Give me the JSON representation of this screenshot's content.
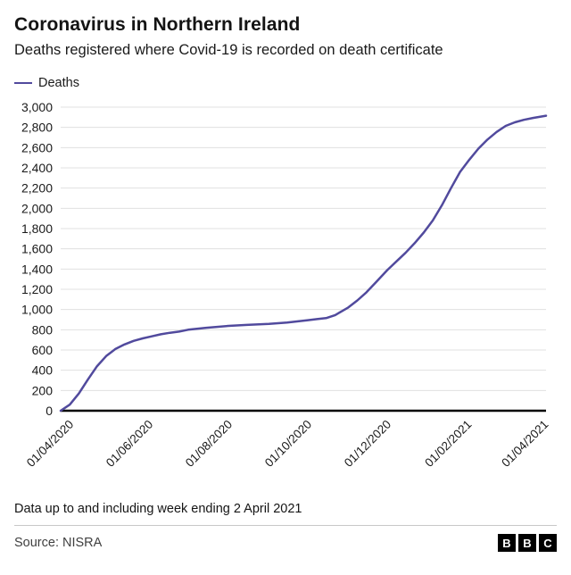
{
  "header": {
    "title": "Coronavirus in Northern Ireland",
    "subtitle": "Deaths registered where Covid-19 is recorded on death certificate"
  },
  "legend": {
    "label": "Deaths"
  },
  "chart_data": {
    "type": "line",
    "title": "Coronavirus in Northern Ireland",
    "subtitle": "Deaths registered where Covid-19 is recorded on death certificate",
    "xlabel": "",
    "ylabel": "",
    "ylim": [
      0,
      3000
    ],
    "y_tick_step": 200,
    "grid": true,
    "grid_color": "#e0e0e0",
    "axis_color": "#000000",
    "legend_position": "top-left",
    "x_ticks": [
      "01/04/2020",
      "01/06/2020",
      "01/08/2020",
      "01/10/2020",
      "01/12/2020",
      "01/02/2021",
      "01/04/2021"
    ],
    "series": [
      {
        "name": "Deaths",
        "color": "#514a9d",
        "points": [
          {
            "date": "25/03/2020",
            "value": 0
          },
          {
            "date": "01/04/2020",
            "value": 60
          },
          {
            "date": "08/04/2020",
            "value": 170
          },
          {
            "date": "15/04/2020",
            "value": 310
          },
          {
            "date": "22/04/2020",
            "value": 440
          },
          {
            "date": "29/04/2020",
            "value": 540
          },
          {
            "date": "06/05/2020",
            "value": 610
          },
          {
            "date": "13/05/2020",
            "value": 655
          },
          {
            "date": "20/05/2020",
            "value": 690
          },
          {
            "date": "27/05/2020",
            "value": 715
          },
          {
            "date": "03/06/2020",
            "value": 735
          },
          {
            "date": "10/06/2020",
            "value": 755
          },
          {
            "date": "17/06/2020",
            "value": 770
          },
          {
            "date": "24/06/2020",
            "value": 782
          },
          {
            "date": "01/07/2020",
            "value": 800
          },
          {
            "date": "15/07/2020",
            "value": 820
          },
          {
            "date": "01/08/2020",
            "value": 838
          },
          {
            "date": "15/08/2020",
            "value": 848
          },
          {
            "date": "01/09/2020",
            "value": 858
          },
          {
            "date": "15/09/2020",
            "value": 872
          },
          {
            "date": "01/10/2020",
            "value": 895
          },
          {
            "date": "08/10/2020",
            "value": 905
          },
          {
            "date": "15/10/2020",
            "value": 915
          },
          {
            "date": "22/10/2020",
            "value": 945
          },
          {
            "date": "01/11/2020",
            "value": 1020
          },
          {
            "date": "08/11/2020",
            "value": 1090
          },
          {
            "date": "15/11/2020",
            "value": 1170
          },
          {
            "date": "22/11/2020",
            "value": 1265
          },
          {
            "date": "01/12/2020",
            "value": 1390
          },
          {
            "date": "08/12/2020",
            "value": 1475
          },
          {
            "date": "15/12/2020",
            "value": 1560
          },
          {
            "date": "22/12/2020",
            "value": 1655
          },
          {
            "date": "29/12/2020",
            "value": 1760
          },
          {
            "date": "05/01/2021",
            "value": 1880
          },
          {
            "date": "12/01/2021",
            "value": 2030
          },
          {
            "date": "19/01/2021",
            "value": 2200
          },
          {
            "date": "26/01/2021",
            "value": 2360
          },
          {
            "date": "02/02/2021",
            "value": 2480
          },
          {
            "date": "09/02/2021",
            "value": 2590
          },
          {
            "date": "16/02/2021",
            "value": 2680
          },
          {
            "date": "23/02/2021",
            "value": 2755
          },
          {
            "date": "02/03/2021",
            "value": 2815
          },
          {
            "date": "09/03/2021",
            "value": 2850
          },
          {
            "date": "16/03/2021",
            "value": 2875
          },
          {
            "date": "23/03/2021",
            "value": 2893
          },
          {
            "date": "02/04/2021",
            "value": 2915
          }
        ]
      }
    ]
  },
  "footer": {
    "note": "Data up to and including week ending 2 April 2021",
    "source": "Source: NISRA",
    "logo_letters": [
      "B",
      "B",
      "C"
    ]
  },
  "colors": {
    "line": "#514a9d",
    "grid": "#e0e0e0",
    "axis": "#000000",
    "background": "#ffffff"
  }
}
